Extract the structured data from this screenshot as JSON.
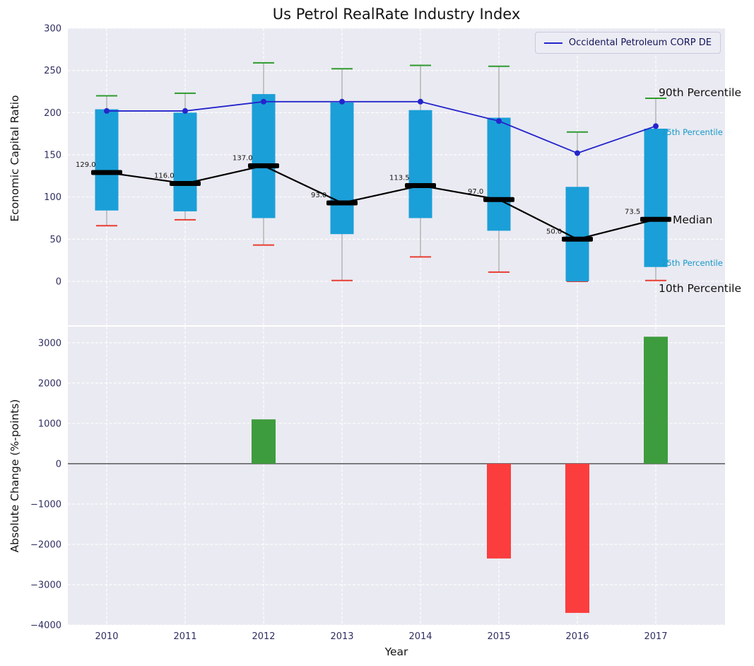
{
  "title": "Us Petrol RealRate Industry Index",
  "top": {
    "ylabel": "Economic Capital Ratio",
    "legend_label": "Occidental Petroleum CORP DE",
    "yticks": [
      0,
      50,
      100,
      150,
      200,
      250,
      300
    ],
    "annotations": [
      {
        "label": "90th Percentile",
        "color": "#111111"
      },
      {
        "label": "75th Percentile",
        "color": "#1699c8"
      },
      {
        "label": "Median",
        "color": "#111111"
      },
      {
        "label": "25th Percentile",
        "color": "#1699c8"
      },
      {
        "label": "10th Percentile",
        "color": "#111111"
      }
    ]
  },
  "bottom": {
    "ylabel": "Absolute Change (%-points)",
    "xlabel": "Year",
    "yticks": [
      -4000,
      -3000,
      -2000,
      -1000,
      0,
      1000,
      2000,
      3000
    ]
  },
  "colors": {
    "plot_bg": "#eaeaf2",
    "grid": "#ffffff",
    "box": "#1b9fd8",
    "cap_top": "#2e9b2e",
    "cap_bottom": "#e83c30",
    "whisker": "#a6a6a6",
    "median": "#000000",
    "company": "#2525cc",
    "bar_positive": "#3d9c3d",
    "bar_negative": "#fb3d3d",
    "tick_label": "#2f2f63",
    "zero_line": "#3b3b3b"
  },
  "chart_data": [
    {
      "type": "boxplot",
      "title": "Us Petrol RealRate Industry Index",
      "ylabel": "Economic Capital Ratio",
      "categories": [
        "2010",
        "2011",
        "2012",
        "2013",
        "2014",
        "2015",
        "2016",
        "2017"
      ],
      "ylim": [
        -52,
        300
      ],
      "grid": true,
      "legend_position": "upper right",
      "legend": [
        "Occidental Petroleum CORP DE"
      ],
      "series": [
        {
          "name": "90th Percentile",
          "values": [
            220,
            223,
            259,
            252,
            256,
            255,
            177,
            217
          ]
        },
        {
          "name": "75th Percentile",
          "values": [
            204,
            200,
            222,
            212,
            203,
            194,
            112,
            181
          ]
        },
        {
          "name": "Median",
          "values": [
            129.0,
            116.0,
            137.0,
            93.0,
            113.5,
            97.0,
            50.0,
            73.5
          ]
        },
        {
          "name": "25th Percentile",
          "values": [
            84,
            83,
            75,
            56,
            75,
            60,
            0,
            17
          ]
        },
        {
          "name": "10th Percentile",
          "values": [
            66,
            73,
            43,
            1,
            29,
            11,
            0,
            1
          ]
        },
        {
          "name": "Occidental Petroleum CORP DE",
          "values": [
            202,
            202,
            213,
            213,
            213,
            190,
            152,
            184
          ]
        }
      ]
    },
    {
      "type": "bar",
      "ylabel": "Absolute Change (%-points)",
      "xlabel": "Year",
      "categories": [
        "2010",
        "2011",
        "2012",
        "2013",
        "2014",
        "2015",
        "2016",
        "2017"
      ],
      "values": [
        0,
        0,
        1100,
        0,
        0,
        -2350,
        -3700,
        3150
      ],
      "ylim": [
        -4000,
        3400
      ],
      "grid": true
    }
  ]
}
